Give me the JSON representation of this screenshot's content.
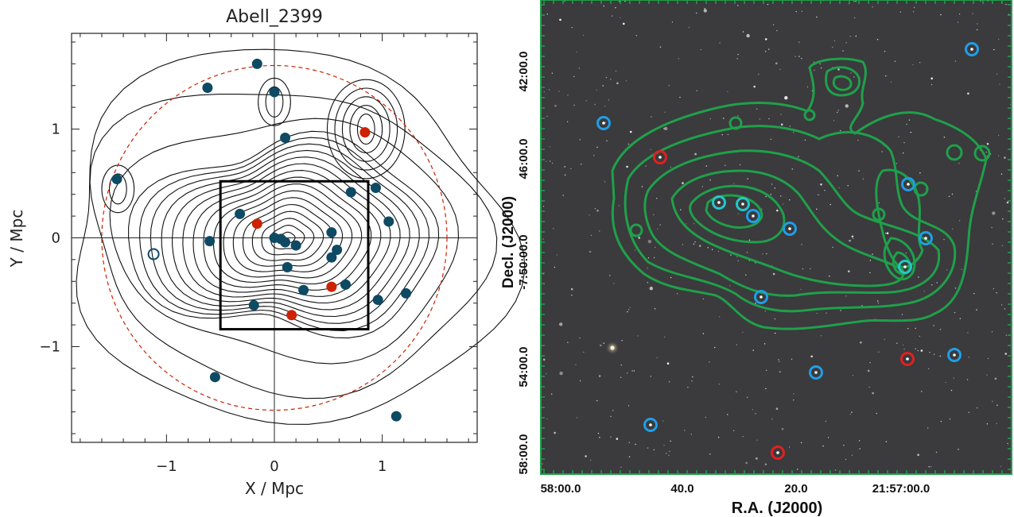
{
  "left_panel": {
    "title": "Abell_2399",
    "xlabel": "X / Mpc",
    "ylabel": "Y / Mpc",
    "x_ticks": [
      {
        "v": -1,
        "t": "−1"
      },
      {
        "v": 0,
        "t": "0"
      },
      {
        "v": 1,
        "t": "1"
      }
    ],
    "y_ticks": [
      {
        "v": -1,
        "t": "−1"
      },
      {
        "v": 0,
        "t": "0"
      },
      {
        "v": 1,
        "t": "1"
      }
    ],
    "xlim": [
      -1.88,
      1.88
    ],
    "ylim": [
      -1.88,
      1.88
    ],
    "dashed_circle_radius_mpc": 1.6,
    "box_mpc": {
      "x0": -0.5,
      "x1": 0.87,
      "y0": -0.84,
      "y1": 0.52
    },
    "colors": {
      "blue": "#0e4a63",
      "red": "#cc2200",
      "circle": "#cc2200"
    },
    "points_blue": [
      [
        -0.16,
        1.6
      ],
      [
        -0.62,
        1.38
      ],
      [
        0.0,
        1.34
      ],
      [
        0.1,
        0.92
      ],
      [
        -1.46,
        0.54
      ],
      [
        0.94,
        0.46
      ],
      [
        0.71,
        0.42
      ],
      [
        1.06,
        0.15
      ],
      [
        -0.32,
        0.22
      ],
      [
        -0.6,
        -0.03
      ],
      [
        0.0,
        0.0
      ],
      [
        0.06,
        -0.01
      ],
      [
        0.1,
        -0.04
      ],
      [
        0.2,
        -0.07
      ],
      [
        0.53,
        0.05
      ],
      [
        0.53,
        -0.18
      ],
      [
        0.58,
        -0.11
      ],
      [
        0.12,
        -0.27
      ],
      [
        0.27,
        -0.48
      ],
      [
        0.66,
        -0.43
      ],
      [
        0.96,
        -0.57
      ],
      [
        1.22,
        -0.51
      ],
      [
        -0.19,
        -0.62
      ],
      [
        -0.55,
        -1.28
      ],
      [
        1.13,
        -1.64
      ]
    ],
    "points_red": [
      [
        0.84,
        0.97
      ],
      [
        -0.16,
        0.13
      ],
      [
        0.53,
        -0.45
      ],
      [
        0.16,
        -0.71
      ]
    ],
    "points_open": [
      [
        -1.12,
        -0.15
      ]
    ]
  },
  "right_panel": {
    "xlabel": "R.A. (J2000)",
    "ylabel": "Decl. (J2000)",
    "x_ticks": [
      "58:00.0",
      "40.0",
      "20.0",
      "21:57:00.0"
    ],
    "y_ticks": [
      "42:00.0",
      "46:00.0",
      "-7:50:00.0",
      "54:00.0",
      "58:00.0"
    ],
    "colors": {
      "background": "#3b3a3d",
      "contour": "#1fa04a",
      "blue_marker": "#1e9fe6",
      "red_marker": "#e02020",
      "teal_marker": "#23c7c7"
    }
  }
}
